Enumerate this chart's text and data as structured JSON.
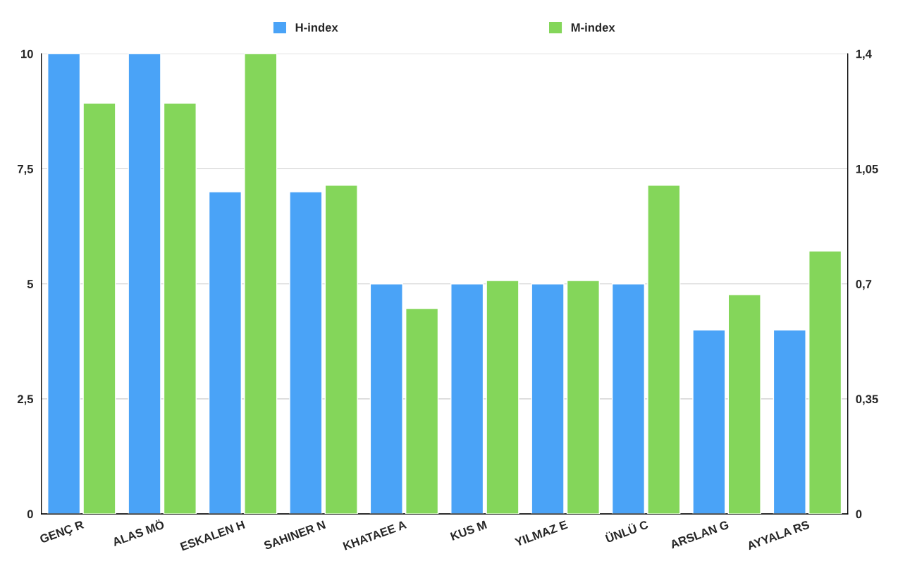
{
  "chart_data": {
    "type": "bar",
    "categories": [
      "GENÇ R",
      "ALAS MÖ",
      "ESKALEN H",
      "SAHINER N",
      "KHATAEE A",
      "KUS M",
      "YILMAZ E",
      "ÜNLÜ C",
      "ARSLAN G",
      "AYYALA RS"
    ],
    "series": [
      {
        "name": "H-index",
        "color": "#4aa3f7",
        "values": [
          10,
          10,
          7,
          7,
          5,
          5,
          5,
          5,
          4,
          4
        ]
      },
      {
        "name": "M-index",
        "color": "#84d65a",
        "axis": "y2",
        "values": [
          1.25,
          1.25,
          1.4,
          1.0,
          0.625,
          0.71,
          0.71,
          1.0,
          0.667,
          0.8
        ]
      }
    ],
    "ylim": [
      0,
      10
    ],
    "yticks": [
      0,
      {
        "value": 2.5,
        "label": "2,5"
      },
      5,
      {
        "value": 7.5,
        "label": "7,5"
      },
      10
    ],
    "y2lim": [
      0,
      1.4
    ],
    "y2ticks": [
      0,
      {
        "value": 0.35,
        "label": "0,35"
      },
      {
        "value": 0.7,
        "label": "0,7"
      },
      {
        "value": 1.05,
        "label": "1,05"
      },
      {
        "value": 1.4,
        "label": "1,4"
      }
    ],
    "grid": "y",
    "legend": "top"
  }
}
